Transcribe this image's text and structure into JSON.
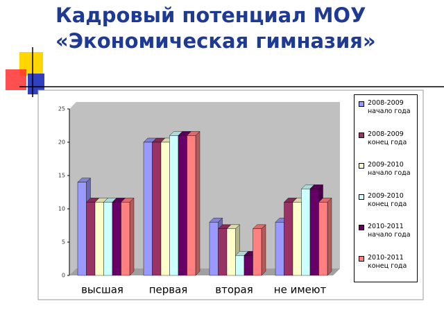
{
  "chart_data": {
    "type": "bar3d",
    "title": [
      "Кадровый потенциал МОУ",
      "«Экономическая гимназия»"
    ],
    "categories": [
      "высшая",
      "первая",
      "вторая",
      "не имеют"
    ],
    "series": [
      {
        "name": "2008-2009 начало года",
        "color": "#9999ff",
        "values": [
          14,
          20,
          8,
          8
        ]
      },
      {
        "name": "2008-2009 конец года",
        "color": "#993366",
        "values": [
          11,
          20,
          7,
          11
        ]
      },
      {
        "name": "2009-2010 начало года",
        "color": "#ffffcc",
        "values": [
          11,
          20,
          7,
          11
        ]
      },
      {
        "name": "2009-2010 конец года",
        "color": "#ccffff",
        "values": [
          11,
          21,
          3,
          13
        ]
      },
      {
        "name": "2010-2011 начало года",
        "color": "#660066",
        "values": [
          11,
          21,
          3,
          13
        ]
      },
      {
        "name": "2010-2011 конец года",
        "color": "#ff8080",
        "values": [
          11,
          21,
          7,
          11
        ]
      }
    ],
    "ylim": [
      0,
      25
    ],
    "yticks": [
      0,
      5,
      10,
      15,
      20,
      25
    ],
    "grid": false,
    "legend": "right"
  }
}
